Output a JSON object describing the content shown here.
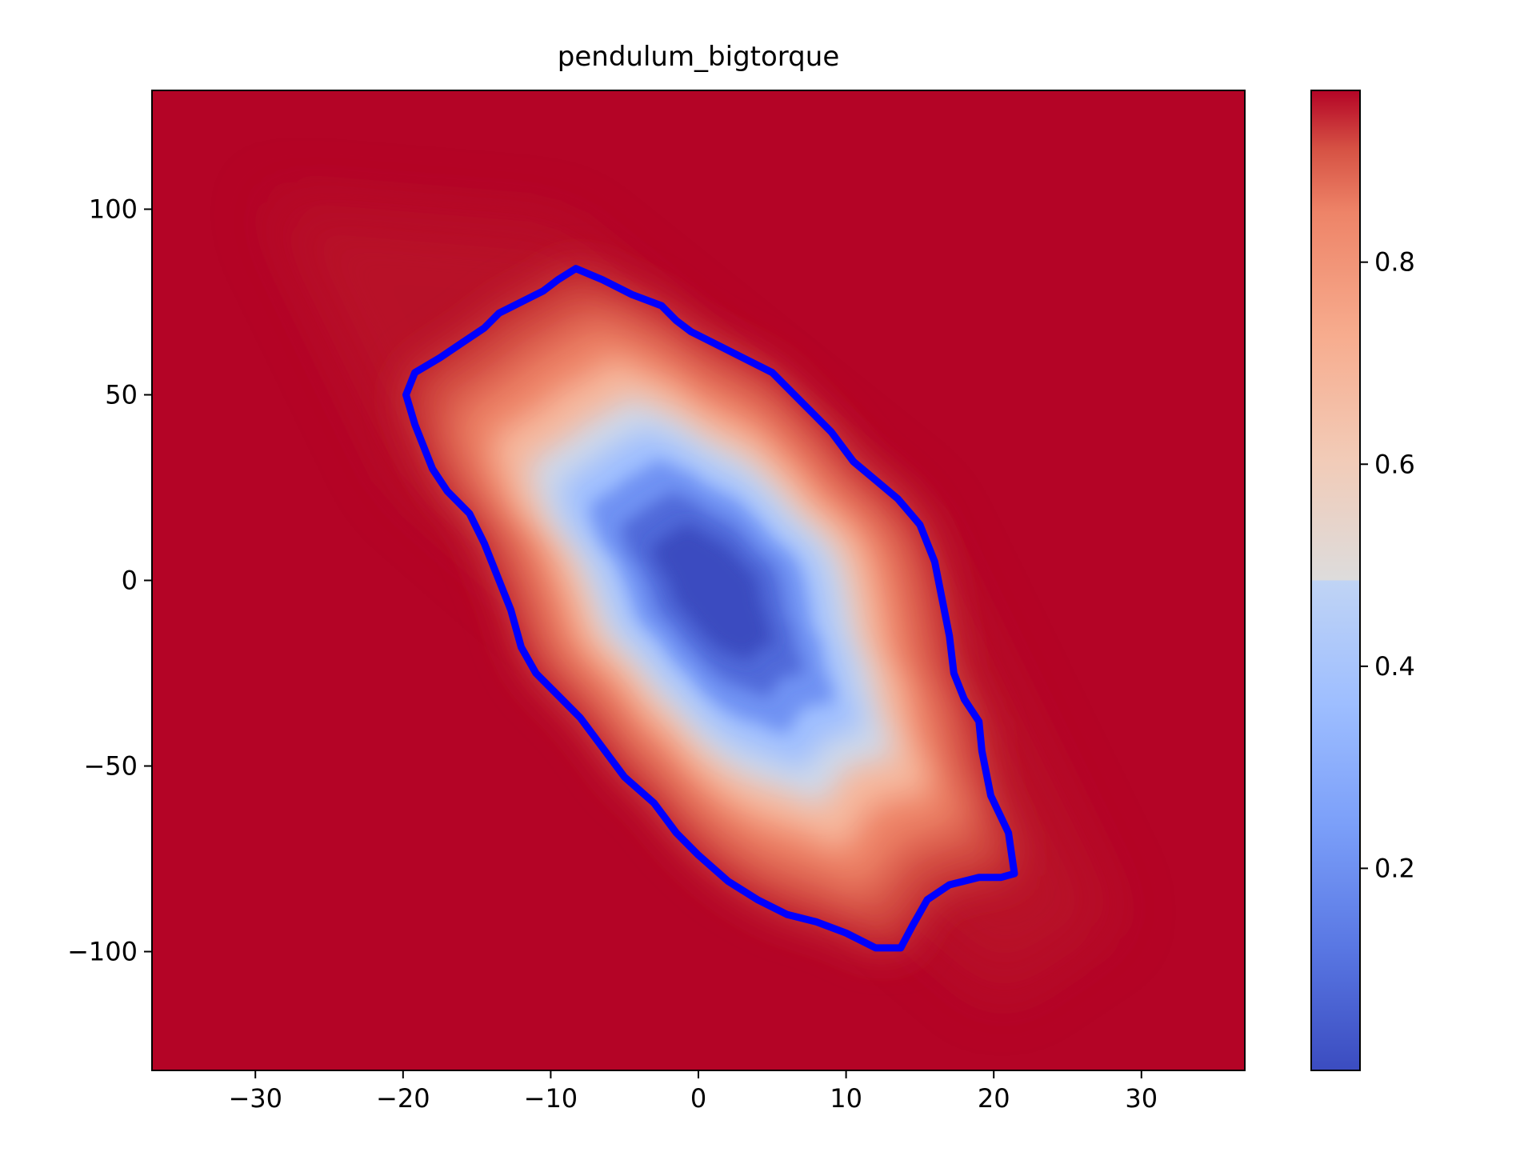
{
  "chart_data": {
    "type": "heatmap",
    "title": "pendulum_bigtorque",
    "xlabel": "",
    "ylabel": "",
    "xlim": [
      -37,
      37
    ],
    "ylim": [
      -132,
      132
    ],
    "xticks": [
      -30,
      -20,
      -10,
      0,
      10,
      20,
      30
    ],
    "xtick_labels": [
      "−30",
      "−20",
      "−10",
      "0",
      "10",
      "20",
      "30"
    ],
    "yticks": [
      -100,
      -50,
      0,
      50,
      100
    ],
    "ytick_labels": [
      "−100",
      "−50",
      "0",
      "50",
      "100"
    ],
    "colormap": "coolwarm",
    "colorbar": {
      "vmin": 0.0,
      "vmax": 0.97,
      "ticks": [
        0.2,
        0.4,
        0.6,
        0.8
      ],
      "tick_labels": [
        "0.2",
        "0.4",
        "0.6",
        "0.8"
      ]
    },
    "field": {
      "description": "value near 0 inside a tilted elongated basin centred at about (1, -2), rising to ~0.97 outside",
      "center": [
        1,
        -2
      ],
      "min_value": 0.0,
      "max_value": 0.97
    },
    "contour": {
      "color": "#0000ff",
      "points": [
        [
          -8.3,
          84
        ],
        [
          -6.5,
          81
        ],
        [
          -4.5,
          77
        ],
        [
          -2.5,
          74
        ],
        [
          -1.5,
          70
        ],
        [
          -0.5,
          67
        ],
        [
          1,
          64
        ],
        [
          3,
          60
        ],
        [
          5,
          56
        ],
        [
          7,
          48
        ],
        [
          9,
          40
        ],
        [
          10.5,
          32
        ],
        [
          12,
          27
        ],
        [
          13.5,
          22
        ],
        [
          15,
          15
        ],
        [
          16,
          5
        ],
        [
          16.5,
          -5
        ],
        [
          17,
          -15
        ],
        [
          17.3,
          -25
        ],
        [
          18,
          -32
        ],
        [
          19,
          -38
        ],
        [
          19.2,
          -46
        ],
        [
          19.8,
          -58
        ],
        [
          21,
          -68
        ],
        [
          21.4,
          -79
        ],
        [
          20.5,
          -80
        ],
        [
          19,
          -80
        ],
        [
          17,
          -82
        ],
        [
          15.5,
          -86
        ],
        [
          14.5,
          -93
        ],
        [
          13.7,
          -99
        ],
        [
          12,
          -99
        ],
        [
          10,
          -95
        ],
        [
          8,
          -92
        ],
        [
          6,
          -90
        ],
        [
          4,
          -86
        ],
        [
          2,
          -81
        ],
        [
          0,
          -74
        ],
        [
          -1.5,
          -68
        ],
        [
          -3,
          -60
        ],
        [
          -5,
          -53
        ],
        [
          -6.5,
          -45
        ],
        [
          -8,
          -37
        ],
        [
          -9.5,
          -31
        ],
        [
          -11,
          -25
        ],
        [
          -12,
          -18
        ],
        [
          -12.7,
          -8
        ],
        [
          -13.5,
          0
        ],
        [
          -14.5,
          10
        ],
        [
          -15.5,
          18
        ],
        [
          -17,
          24
        ],
        [
          -18,
          30
        ],
        [
          -19.2,
          42
        ],
        [
          -19.8,
          50
        ],
        [
          -19.2,
          56
        ],
        [
          -17.5,
          60
        ],
        [
          -16,
          64
        ],
        [
          -14.5,
          68
        ],
        [
          -13.5,
          72
        ],
        [
          -12,
          75
        ],
        [
          -10.5,
          78
        ],
        [
          -9.5,
          81
        ]
      ]
    }
  }
}
